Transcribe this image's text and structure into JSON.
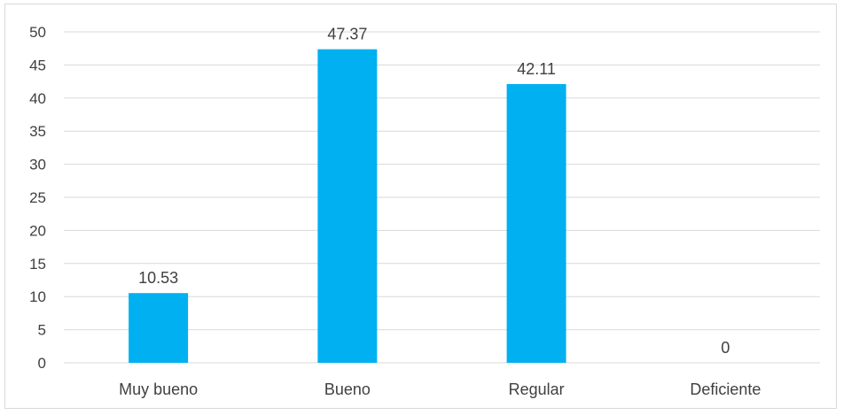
{
  "chart_data": {
    "type": "bar",
    "title": "",
    "xlabel": "",
    "ylabel": "",
    "categories": [
      "Muy bueno",
      "Bueno",
      "Regular",
      "Deficiente"
    ],
    "values": [
      10.53,
      47.37,
      42.11,
      0
    ],
    "value_labels": [
      "10.53",
      "47.37",
      "42.11",
      "0"
    ],
    "ylim": [
      0,
      50
    ],
    "yticks": [
      0,
      5,
      10,
      15,
      20,
      25,
      30,
      35,
      40,
      45,
      50
    ],
    "ytick_labels": [
      "0",
      "5",
      "10",
      "15",
      "20",
      "25",
      "30",
      "35",
      "40",
      "45",
      "50"
    ],
    "grid": true,
    "legend": "none",
    "bar_color": "#00B0F0",
    "grid_color": "#d9d9d9",
    "text_color": "#404040"
  }
}
